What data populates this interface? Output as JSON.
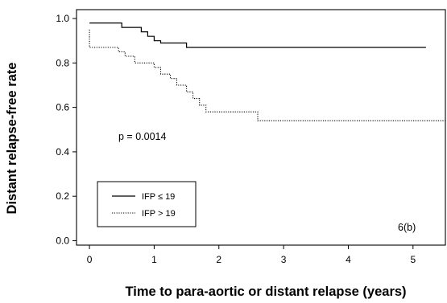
{
  "chart_data": {
    "type": "line",
    "title": "",
    "xlabel": "Time to para-aortic or distant relapse (years)",
    "ylabel": "Distant relapse-free rate",
    "xlim": [
      -0.2,
      5.5
    ],
    "ylim": [
      -0.02,
      1.04
    ],
    "x_ticks": [
      0,
      1,
      2,
      3,
      4,
      5
    ],
    "y_ticks": [
      0.0,
      0.2,
      0.4,
      0.6,
      0.8,
      1.0
    ],
    "x_tick_labels": [
      "0",
      "1",
      "2",
      "3",
      "4",
      "5"
    ],
    "y_tick_labels": [
      "0.0",
      "0.2",
      "0.4",
      "0.6",
      "0.8",
      "1.0"
    ],
    "annotation": "p = 0.0014",
    "panel_label": "6(b)",
    "legend_position": "bottom-left",
    "series": [
      {
        "name": "IFP ≤ 19",
        "style": "solid",
        "color": "#000000",
        "points": [
          [
            0,
            0.98
          ],
          [
            0.5,
            0.98
          ],
          [
            0.5,
            0.96
          ],
          [
            0.8,
            0.96
          ],
          [
            0.8,
            0.94
          ],
          [
            0.9,
            0.94
          ],
          [
            0.9,
            0.92
          ],
          [
            1.0,
            0.92
          ],
          [
            1.0,
            0.9
          ],
          [
            1.1,
            0.9
          ],
          [
            1.1,
            0.89
          ],
          [
            1.5,
            0.89
          ],
          [
            1.5,
            0.87
          ],
          [
            5.2,
            0.87
          ]
        ]
      },
      {
        "name": "IFP > 19",
        "style": "dotted",
        "color": "#000000",
        "points": [
          [
            0,
            0.95
          ],
          [
            0,
            0.87
          ],
          [
            0.45,
            0.87
          ],
          [
            0.45,
            0.85
          ],
          [
            0.55,
            0.85
          ],
          [
            0.55,
            0.83
          ],
          [
            0.7,
            0.83
          ],
          [
            0.7,
            0.8
          ],
          [
            1.0,
            0.8
          ],
          [
            1.0,
            0.78
          ],
          [
            1.1,
            0.78
          ],
          [
            1.1,
            0.75
          ],
          [
            1.25,
            0.75
          ],
          [
            1.25,
            0.73
          ],
          [
            1.35,
            0.73
          ],
          [
            1.35,
            0.7
          ],
          [
            1.5,
            0.7
          ],
          [
            1.5,
            0.67
          ],
          [
            1.6,
            0.67
          ],
          [
            1.6,
            0.64
          ],
          [
            1.7,
            0.64
          ],
          [
            1.7,
            0.61
          ],
          [
            1.8,
            0.61
          ],
          [
            1.8,
            0.58
          ],
          [
            2.6,
            0.58
          ],
          [
            2.6,
            0.54
          ],
          [
            5.5,
            0.54
          ]
        ]
      }
    ]
  }
}
